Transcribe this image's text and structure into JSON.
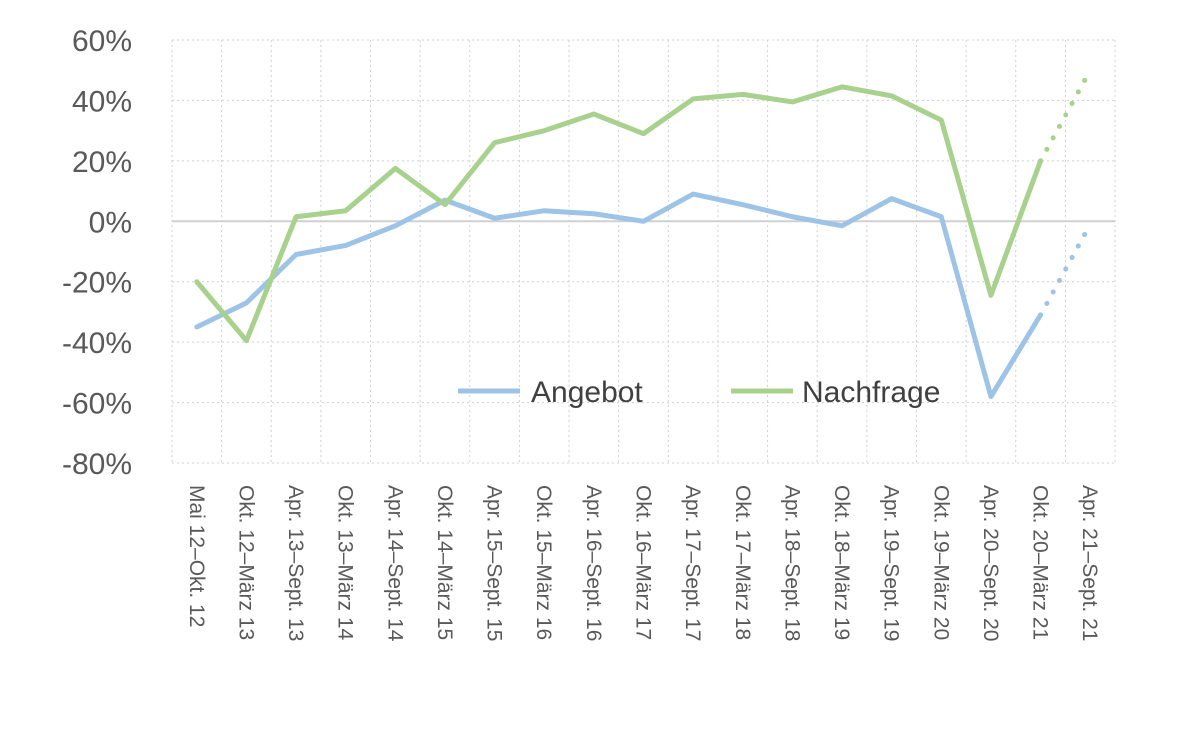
{
  "chart_data": {
    "type": "line",
    "title": "",
    "xlabel": "",
    "ylabel": "",
    "ylim": [
      -0.8,
      0.6
    ],
    "y_ticks": [
      0.6,
      0.4,
      0.2,
      0,
      -0.2,
      -0.4,
      -0.6,
      -0.8
    ],
    "y_tick_labels": [
      "60%",
      "40%",
      "20%",
      "0%",
      "-20%",
      "-40%",
      "-60%",
      "-80%"
    ],
    "grid": true,
    "legend_position": "center-right",
    "categories": [
      "Mai 12–Okt. 12",
      "Okt. 12–März 13",
      "Apr. 13–Sept. 13",
      "Okt. 13–März 14",
      "Apr. 14–Sept. 14",
      "Okt. 14–März 15",
      "Apr. 15–Sept. 15",
      "Okt. 15–März 16",
      "Apr. 16–Sept. 16",
      "Okt. 16–März 17",
      "Apr. 17–Sept. 17",
      "Okt. 17–März 18",
      "Apr. 18–Sept. 18",
      "Okt. 18–März 19",
      "Apr. 19–Sept. 19",
      "Okt. 19–März 20",
      "Apr. 20–Sept. 20",
      "Okt. 20–März 21",
      "Apr. 21–Sept. 21"
    ],
    "series": [
      {
        "name": "Angebot",
        "color": "#9dc3e6",
        "values": [
          -0.35,
          -0.27,
          -0.11,
          -0.08,
          -0.015,
          0.07,
          0.01,
          0.035,
          0.025,
          0.0,
          0.09,
          0.055,
          0.015,
          -0.015,
          0.075,
          0.015,
          -0.58,
          -0.31,
          -0.01
        ],
        "dotted_from_index": 17
      },
      {
        "name": "Nachfrage",
        "color": "#a9d18e",
        "values": [
          -0.2,
          -0.395,
          0.015,
          0.035,
          0.175,
          0.055,
          0.26,
          0.3,
          0.355,
          0.29,
          0.405,
          0.42,
          0.395,
          0.445,
          0.415,
          0.335,
          -0.245,
          0.2,
          0.5
        ],
        "dotted_from_index": 17
      }
    ]
  }
}
